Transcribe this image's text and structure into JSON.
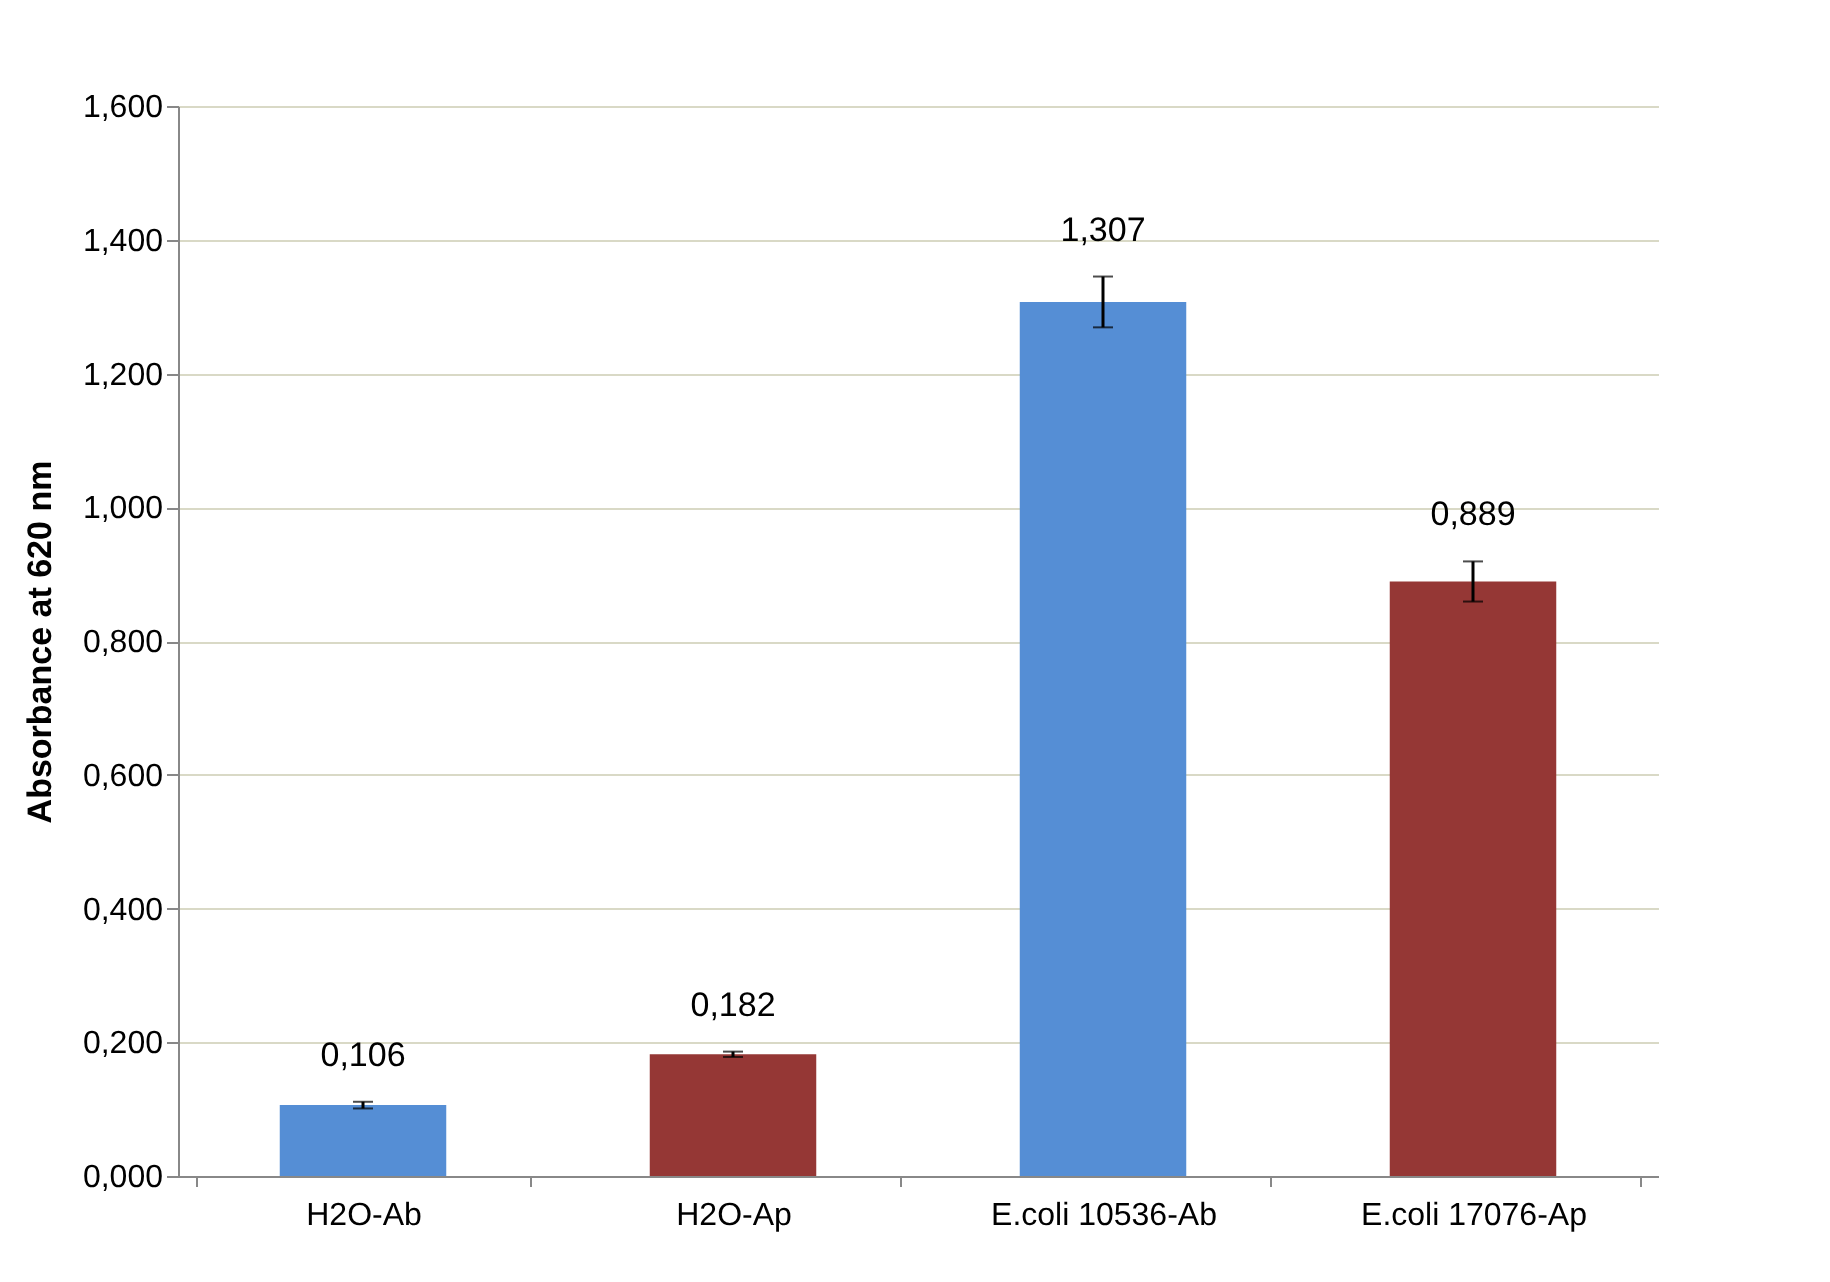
{
  "chart_data": {
    "type": "bar",
    "ylabel": "Absorbance at 620 nm",
    "categories": [
      "H2O-Ab",
      "H2O-Ap",
      "E.coli 10536-Ab",
      "E.coli 17076-Ap"
    ],
    "values": [
      0.106,
      0.182,
      1.307,
      0.889
    ],
    "colors": [
      "#558ed5",
      "#953735",
      "#558ed5",
      "#953735"
    ],
    "errors": [
      0.005,
      0.004,
      0.038,
      0.03
    ],
    "value_labels": [
      "0,106",
      "0,182",
      "1,307",
      "0,889"
    ],
    "ylim": [
      0,
      1.6
    ],
    "yticks": [
      {
        "value": 0,
        "label": "0,000"
      },
      {
        "value": 0.2,
        "label": "0,200"
      },
      {
        "value": 0.4,
        "label": "0,400"
      },
      {
        "value": 0.6,
        "label": "0,600"
      },
      {
        "value": 0.8,
        "label": "0,800"
      },
      {
        "value": 1,
        "label": "1,000"
      },
      {
        "value": 1.2,
        "label": "1,200"
      },
      {
        "value": 1.4,
        "label": "1,400"
      },
      {
        "value": 1.6,
        "label": "1,600"
      }
    ],
    "grid": "y"
  }
}
